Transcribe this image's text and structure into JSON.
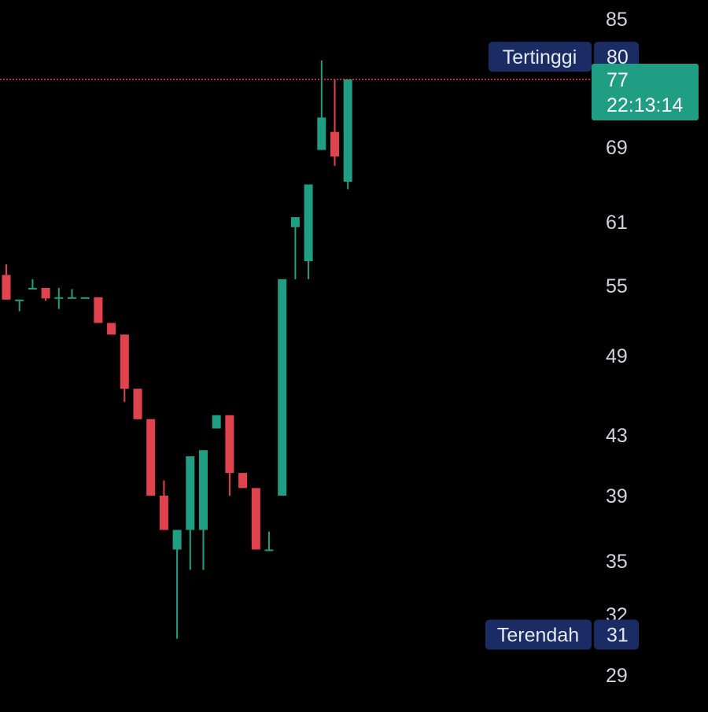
{
  "colors": {
    "background": "#000000",
    "up": "#1f9e84",
    "down": "#e0434e",
    "axis_text": "#d1d4dc",
    "label_bg": "#1a2c63",
    "label_text": "#e6e9f2",
    "price_line": "#e0434e"
  },
  "chart_data": {
    "type": "candlestick",
    "y_ticks": [
      "85",
      "69",
      "61",
      "55",
      "49",
      "43",
      "39",
      "35",
      "32",
      "29"
    ],
    "high_label": {
      "text": "Tertinggi",
      "value": "80"
    },
    "low_label": {
      "text": "Terendah",
      "value": "31"
    },
    "current": {
      "value": "77",
      "time": "22:13:14"
    },
    "candles": [
      {
        "o": 56.0,
        "h": 57.0,
        "l": 53.8,
        "c": 53.8
      },
      {
        "o": 53.8,
        "h": 53.8,
        "l": 52.8,
        "c": 53.8
      },
      {
        "o": 54.8,
        "h": 55.6,
        "l": 54.8,
        "c": 54.8
      },
      {
        "o": 54.8,
        "h": 54.8,
        "l": 53.7,
        "c": 53.9
      },
      {
        "o": 54.0,
        "h": 54.8,
        "l": 53.0,
        "c": 54.0
      },
      {
        "o": 54.0,
        "h": 54.7,
        "l": 53.9,
        "c": 54.0
      },
      {
        "o": 54.0,
        "h": 54.0,
        "l": 53.9,
        "c": 54.0
      },
      {
        "o": 54.0,
        "h": 54.0,
        "l": 51.8,
        "c": 51.8
      },
      {
        "o": 51.8,
        "h": 51.8,
        "l": 50.8,
        "c": 50.8
      },
      {
        "o": 50.8,
        "h": 50.8,
        "l": 45.5,
        "c": 46.5
      },
      {
        "o": 46.5,
        "h": 46.5,
        "l": 44.2,
        "c": 44.2
      },
      {
        "o": 44.2,
        "h": 44.2,
        "l": 39.0,
        "c": 39.0
      },
      {
        "o": 39.0,
        "h": 40.0,
        "l": 36.9,
        "c": 36.9
      },
      {
        "o": 35.7,
        "h": 36.9,
        "l": 30.8,
        "c": 36.9
      },
      {
        "o": 36.9,
        "h": 41.6,
        "l": 34.5,
        "c": 41.6
      },
      {
        "o": 36.9,
        "h": 42.0,
        "l": 34.5,
        "c": 42.0
      },
      {
        "o": 43.5,
        "h": 44.5,
        "l": 43.5,
        "c": 44.5
      },
      {
        "o": 44.5,
        "h": 44.5,
        "l": 39.0,
        "c": 40.5
      },
      {
        "o": 40.5,
        "h": 40.5,
        "l": 39.5,
        "c": 39.5
      },
      {
        "o": 39.5,
        "h": 39.5,
        "l": 35.7,
        "c": 35.7
      },
      {
        "o": 35.7,
        "h": 36.8,
        "l": 35.7,
        "c": 35.7
      },
      {
        "o": 39.0,
        "h": 55.6,
        "l": 39.0,
        "c": 55.6
      },
      {
        "o": 60.5,
        "h": 61.5,
        "l": 55.6,
        "c": 61.5
      },
      {
        "o": 57.3,
        "h": 65.0,
        "l": 55.6,
        "c": 65.0
      },
      {
        "o": 68.7,
        "h": 79.5,
        "l": 68.7,
        "c": 72.5
      },
      {
        "o": 70.8,
        "h": 77.0,
        "l": 67.0,
        "c": 68.0
      },
      {
        "o": 65.3,
        "h": 77.0,
        "l": 64.5,
        "c": 77.0
      }
    ]
  }
}
